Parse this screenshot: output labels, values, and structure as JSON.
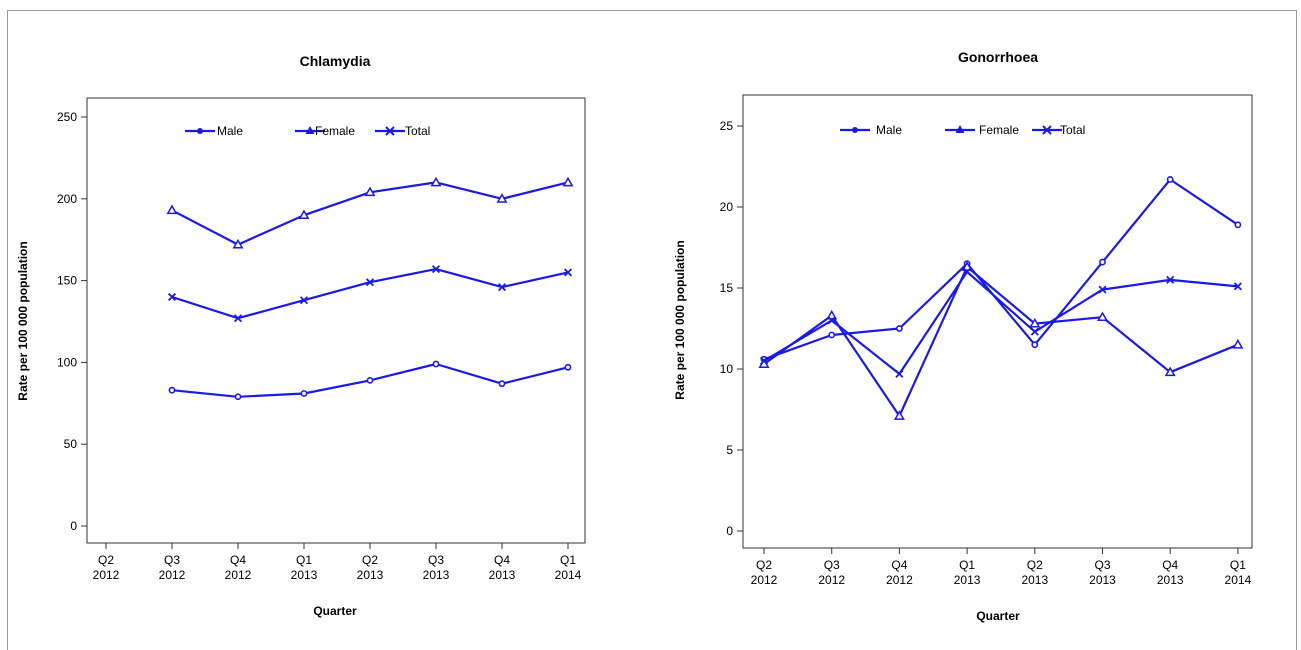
{
  "colors": {
    "series": "#1a1ae6",
    "axis": "#333333",
    "frame": "#9a9a9a"
  },
  "chart_data": [
    {
      "type": "line",
      "title": "Chlamydia",
      "xlabel": "Quarter",
      "ylabel": "Rate per 100 000 population",
      "ylim": [
        0,
        250
      ],
      "yticks": [
        0,
        50,
        100,
        150,
        200,
        250
      ],
      "grid": false,
      "legend_position": "top",
      "categories": [
        [
          "Q2",
          "2012"
        ],
        [
          "Q3",
          "2012"
        ],
        [
          "Q4",
          "2012"
        ],
        [
          "Q1",
          "2013"
        ],
        [
          "Q2",
          "2013"
        ],
        [
          "Q3",
          "2013"
        ],
        [
          "Q4",
          "2013"
        ],
        [
          "Q1",
          "2014"
        ]
      ],
      "series": [
        {
          "name": "Male",
          "marker": "circle",
          "values": [
            null,
            83,
            79,
            81,
            89,
            99,
            87,
            97
          ]
        },
        {
          "name": "Female",
          "marker": "triangle",
          "values": [
            null,
            193,
            172,
            190,
            204,
            210,
            200,
            210
          ]
        },
        {
          "name": "Total",
          "marker": "x",
          "values": [
            null,
            140,
            127,
            138,
            149,
            157,
            146,
            155
          ]
        }
      ]
    },
    {
      "type": "line",
      "title": "Gonorrhoea",
      "xlabel": "Quarter",
      "ylabel": "Rate per 100 000 population",
      "ylim": [
        0,
        25
      ],
      "yticks": [
        0,
        5,
        10,
        15,
        20,
        25
      ],
      "grid": false,
      "legend_position": "top",
      "categories": [
        [
          "Q2",
          "2012"
        ],
        [
          "Q3",
          "2012"
        ],
        [
          "Q4",
          "2012"
        ],
        [
          "Q1",
          "2013"
        ],
        [
          "Q2",
          "2013"
        ],
        [
          "Q3",
          "2013"
        ],
        [
          "Q4",
          "2013"
        ],
        [
          "Q1",
          "2014"
        ]
      ],
      "series": [
        {
          "name": "Male",
          "marker": "circle",
          "values": [
            10.6,
            12.1,
            12.5,
            16.5,
            11.5,
            16.6,
            21.7,
            18.9
          ]
        },
        {
          "name": "Female",
          "marker": "triangle",
          "values": [
            10.3,
            13.3,
            7.1,
            16.3,
            12.8,
            13.2,
            9.8,
            11.5
          ]
        },
        {
          "name": "Total",
          "marker": "x",
          "values": [
            10.5,
            13.0,
            9.7,
            16.0,
            12.3,
            14.9,
            15.5,
            15.1
          ]
        }
      ]
    }
  ]
}
